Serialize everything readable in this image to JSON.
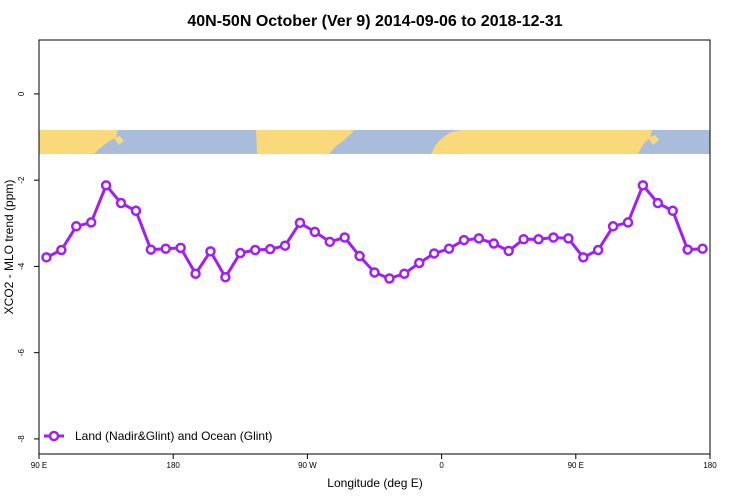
{
  "chart_data": {
    "type": "line",
    "title": "40N-50N October (Ver 9)   2014-09-06 to 2018-12-31",
    "xlabel": "Longitude (deg E)",
    "ylabel": "XCO2 - MLO trend (ppm)",
    "x_tick_labels": [
      "90 E",
      "180",
      "90 W",
      "0",
      "90 E",
      "180"
    ],
    "x_tick_positions": [
      90,
      180,
      270,
      360,
      450,
      540
    ],
    "y_ticks": [
      0,
      -2,
      -4,
      -6,
      -8
    ],
    "y_tick_labels": [
      "0",
      "-2",
      "-4",
      "-6",
      "-8"
    ],
    "xlim": [
      90,
      540
    ],
    "ylim": [
      -8.35,
      1.25
    ],
    "legend_position": "bottom-left",
    "grid": false,
    "series": [
      {
        "name": "Land (Nadir&Glint) and Ocean (Glint)",
        "color": "#a020f0",
        "x": [
          95,
          105,
          115,
          125,
          135,
          145,
          155,
          165,
          175,
          185,
          195,
          205,
          215,
          225,
          235,
          245,
          255,
          265,
          275,
          285,
          295,
          305,
          315,
          325,
          335,
          345,
          355,
          365,
          375,
          385,
          395,
          405,
          415,
          425,
          435,
          445,
          455,
          465,
          475,
          485,
          495,
          505,
          515,
          525,
          535
        ],
        "y": [
          -3.79,
          -3.62,
          -3.07,
          -2.98,
          -2.12,
          -2.53,
          -2.71,
          -3.61,
          -3.59,
          -3.57,
          -4.17,
          -3.65,
          -4.25,
          -3.69,
          -3.62,
          -3.6,
          -3.52,
          -2.99,
          -3.2,
          -3.43,
          -3.33,
          -3.76,
          -4.14,
          -4.28,
          -4.17,
          -3.92,
          -3.7,
          -3.59,
          -3.39,
          -3.35,
          -3.47,
          -3.64,
          -3.37,
          -3.37,
          -3.33,
          -3.35,
          -3.79,
          -3.62,
          -3.07,
          -2.98,
          -2.12,
          -2.53,
          -2.71,
          -3.61,
          -3.59
        ]
      }
    ]
  }
}
